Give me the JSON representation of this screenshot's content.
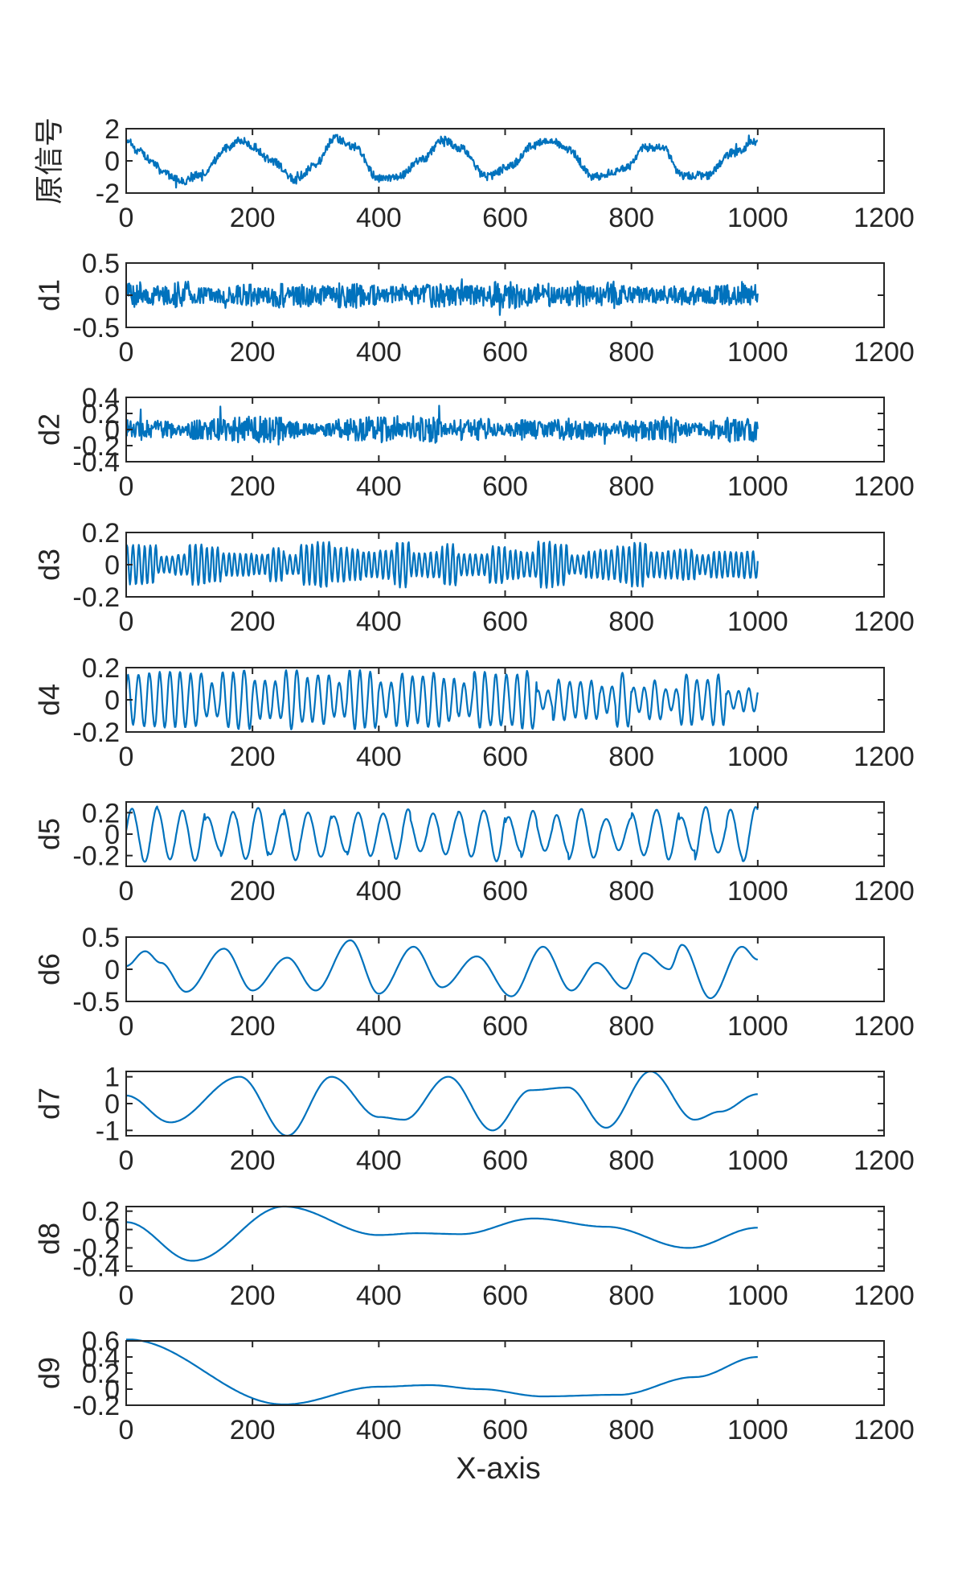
{
  "figure": {
    "xlabel": "X-axis",
    "line_color": "#0072BD"
  },
  "chart_data": [
    {
      "type": "line",
      "ylabel": "原信号",
      "ylim": [
        -2,
        2
      ],
      "yticks": [
        -2,
        0,
        2
      ],
      "ytick_labels": [
        "-2",
        "0",
        "2"
      ],
      "xlim": [
        0,
        1200
      ],
      "xticks": [
        0,
        200,
        400,
        600,
        800,
        1000,
        1200
      ],
      "xtick_labels": [
        "0",
        "200",
        "400",
        "600",
        "800",
        "1000",
        "1200"
      ],
      "x_range": [
        0,
        1000
      ],
      "n_points": 1000,
      "envelope_x": [
        0,
        20,
        40,
        60,
        90,
        120,
        160,
        180,
        200,
        230,
        270,
        300,
        330,
        360,
        400,
        430,
        470,
        500,
        530,
        570,
        610,
        640,
        670,
        700,
        740,
        790,
        820,
        850,
        880,
        920,
        960,
        1000
      ],
      "envelope_y": [
        1.3,
        0.6,
        0.0,
        -0.8,
        -1.3,
        -0.8,
        0.8,
        1.3,
        0.9,
        0.0,
        -1.2,
        -0.2,
        1.4,
        0.9,
        -1.1,
        -1.0,
        0.1,
        1.3,
        0.8,
        -1.0,
        -0.3,
        0.9,
        1.3,
        0.7,
        -1.0,
        -0.5,
        0.8,
        0.8,
        -0.9,
        -0.9,
        0.5,
        1.2
      ],
      "noise_amplitude": 0.25,
      "noise_period": 6,
      "noise_amp_mod": 0.0
    },
    {
      "type": "line",
      "ylabel": "d1",
      "ylim": [
        -0.5,
        0.5
      ],
      "yticks": [
        -0.5,
        0,
        0.5
      ],
      "ytick_labels": [
        "-0.5",
        "0",
        "0.5"
      ],
      "xlim": [
        0,
        1200
      ],
      "xticks": [
        0,
        200,
        400,
        600,
        800,
        1000,
        1200
      ],
      "xtick_labels": [
        "0",
        "200",
        "400",
        "600",
        "800",
        "1000",
        "1200"
      ],
      "x_range": [
        0,
        1000
      ],
      "n_points": 1000,
      "envelope_x": [
        0,
        1000
      ],
      "envelope_y": [
        0,
        0
      ],
      "noise_amplitude": 0.17,
      "noise_period": 2,
      "noise_amp_mod": 0.3
    },
    {
      "type": "line",
      "ylabel": "d2",
      "ylim": [
        -0.4,
        0.4
      ],
      "yticks": [
        -0.4,
        -0.2,
        0,
        0.2,
        0.4
      ],
      "ytick_labels": [
        "-0.4",
        "-0.2",
        "0",
        "0.2",
        "0.4"
      ],
      "xlim": [
        0,
        1200
      ],
      "xticks": [
        0,
        200,
        400,
        600,
        800,
        1000,
        1200
      ],
      "xtick_labels": [
        "0",
        "200",
        "400",
        "600",
        "800",
        "1000",
        "1200"
      ],
      "x_range": [
        0,
        1000
      ],
      "n_points": 1000,
      "envelope_x": [
        0,
        1000
      ],
      "envelope_y": [
        0,
        0
      ],
      "noise_amplitude": 0.12,
      "noise_period": 4,
      "noise_amp_mod": 0.45
    },
    {
      "type": "line",
      "ylabel": "d3",
      "ylim": [
        -0.2,
        0.2
      ],
      "yticks": [
        -0.2,
        0,
        0.2
      ],
      "ytick_labels": [
        "-0.2",
        "0",
        "0.2"
      ],
      "xlim": [
        0,
        1200
      ],
      "xticks": [
        0,
        200,
        400,
        600,
        800,
        1000,
        1200
      ],
      "xtick_labels": [
        "0",
        "200",
        "400",
        "600",
        "800",
        "1000",
        "1200"
      ],
      "x_range": [
        0,
        1000
      ],
      "n_points": 1000,
      "envelope_x": [
        0,
        1000
      ],
      "envelope_y": [
        0,
        0
      ],
      "noise_amplitude": 0.1,
      "noise_period": 9,
      "noise_amp_mod": 0.5
    },
    {
      "type": "line",
      "ylabel": "d4",
      "ylim": [
        -0.2,
        0.2
      ],
      "yticks": [
        -0.2,
        0,
        0.2
      ],
      "ytick_labels": [
        "-0.2",
        "0",
        "0.2"
      ],
      "xlim": [
        0,
        1200
      ],
      "xticks": [
        0,
        200,
        400,
        600,
        800,
        1000,
        1200
      ],
      "xtick_labels": [
        "0",
        "200",
        "400",
        "600",
        "800",
        "1000",
        "1200"
      ],
      "x_range": [
        0,
        1000
      ],
      "n_points": 1000,
      "envelope_x": [
        0,
        1000
      ],
      "envelope_y": [
        0,
        0
      ],
      "noise_amplitude": 0.12,
      "noise_period": 17,
      "noise_amp_mod": 0.55
    },
    {
      "type": "line",
      "ylabel": "d5",
      "ylim": [
        -0.3,
        0.3
      ],
      "yticks": [
        -0.2,
        0,
        0.2
      ],
      "ytick_labels": [
        "-0.2",
        "0",
        "0.2"
      ],
      "xlim": [
        0,
        1200
      ],
      "xticks": [
        0,
        200,
        400,
        600,
        800,
        1000,
        1200
      ],
      "xtick_labels": [
        "0",
        "200",
        "400",
        "600",
        "800",
        "1000",
        "1200"
      ],
      "x_range": [
        0,
        1000
      ],
      "n_points": 1000,
      "envelope_x": [
        0,
        1000
      ],
      "envelope_y": [
        0,
        0
      ],
      "noise_amplitude": 0.2,
      "noise_period": 40,
      "noise_amp_mod": 0.3
    },
    {
      "type": "line",
      "ylabel": "d6",
      "ylim": [
        -0.5,
        0.5
      ],
      "yticks": [
        -0.5,
        0,
        0.5
      ],
      "ytick_labels": [
        "-0.5",
        "0",
        "0.5"
      ],
      "xlim": [
        0,
        1200
      ],
      "xticks": [
        0,
        200,
        400,
        600,
        800,
        1000,
        1200
      ],
      "xtick_labels": [
        "0",
        "200",
        "400",
        "600",
        "800",
        "1000",
        "1200"
      ],
      "x_range": [
        0,
        1000
      ],
      "n_points": 500,
      "envelope_x": [
        0,
        30,
        55,
        95,
        155,
        200,
        255,
        300,
        355,
        400,
        455,
        500,
        555,
        610,
        660,
        705,
        745,
        790,
        820,
        860,
        880,
        925,
        975,
        1000
      ],
      "envelope_y": [
        0.05,
        0.28,
        0.1,
        -0.35,
        0.32,
        -0.33,
        0.18,
        -0.33,
        0.45,
        -0.38,
        0.35,
        -0.28,
        0.2,
        -0.42,
        0.35,
        -0.33,
        0.1,
        -0.3,
        0.25,
        0.0,
        0.38,
        -0.45,
        0.35,
        0.15
      ],
      "noise_amplitude": 0,
      "noise_period": 10,
      "noise_amp_mod": 0
    },
    {
      "type": "line",
      "ylabel": "d7",
      "ylim": [
        -1.2,
        1.2
      ],
      "yticks": [
        -1,
        0,
        1
      ],
      "ytick_labels": [
        "-1",
        "0",
        "1"
      ],
      "xlim": [
        0,
        1200
      ],
      "xticks": [
        0,
        200,
        400,
        600,
        800,
        1000,
        1200
      ],
      "xtick_labels": [
        "0",
        "200",
        "400",
        "600",
        "800",
        "1000",
        "1200"
      ],
      "x_range": [
        0,
        1000
      ],
      "n_points": 400,
      "envelope_x": [
        0,
        70,
        180,
        255,
        325,
        400,
        440,
        510,
        580,
        640,
        700,
        760,
        830,
        900,
        940,
        1000
      ],
      "envelope_y": [
        0.3,
        -0.7,
        1.0,
        -1.2,
        1.0,
        -0.5,
        -0.6,
        1.0,
        -1.0,
        0.5,
        0.6,
        -0.9,
        1.2,
        -0.6,
        -0.3,
        0.35
      ],
      "noise_amplitude": 0,
      "noise_period": 10,
      "noise_amp_mod": 0
    },
    {
      "type": "line",
      "ylabel": "d8",
      "ylim": [
        -0.45,
        0.25
      ],
      "yticks": [
        -0.4,
        -0.2,
        0,
        0.2
      ],
      "ytick_labels": [
        "-0.4",
        "-0.2",
        "0",
        "0.2"
      ],
      "xlim": [
        0,
        1200
      ],
      "xticks": [
        0,
        200,
        400,
        600,
        800,
        1000,
        1200
      ],
      "xtick_labels": [
        "0",
        "200",
        "400",
        "600",
        "800",
        "1000",
        "1200"
      ],
      "x_range": [
        0,
        1000
      ],
      "n_points": 400,
      "envelope_x": [
        0,
        105,
        250,
        400,
        460,
        530,
        645,
        760,
        890,
        1000
      ],
      "envelope_y": [
        0.08,
        -0.34,
        0.25,
        -0.06,
        -0.04,
        -0.05,
        0.12,
        0.03,
        -0.2,
        0.02
      ],
      "noise_amplitude": 0,
      "noise_period": 10,
      "noise_amp_mod": 0
    },
    {
      "type": "line",
      "ylabel": "d9",
      "ylim": [
        -0.2,
        0.6
      ],
      "yticks": [
        -0.2,
        0,
        0.2,
        0.4,
        0.6
      ],
      "ytick_labels": [
        "-0.2",
        "0",
        "0.2",
        "0.4",
        "0.6"
      ],
      "xlim": [
        0,
        1200
      ],
      "xticks": [
        0,
        200,
        400,
        600,
        800,
        1000,
        1200
      ],
      "xtick_labels": [
        "0",
        "200",
        "400",
        "600",
        "800",
        "1000",
        "1200"
      ],
      "x_range": [
        0,
        1000
      ],
      "n_points": 300,
      "envelope_x": [
        0,
        250,
        400,
        480,
        560,
        660,
        780,
        900,
        1000
      ],
      "envelope_y": [
        0.62,
        -0.19,
        0.03,
        0.05,
        0.0,
        -0.09,
        -0.07,
        0.15,
        0.4
      ],
      "noise_amplitude": 0,
      "noise_period": 10,
      "noise_amp_mod": 0
    }
  ]
}
